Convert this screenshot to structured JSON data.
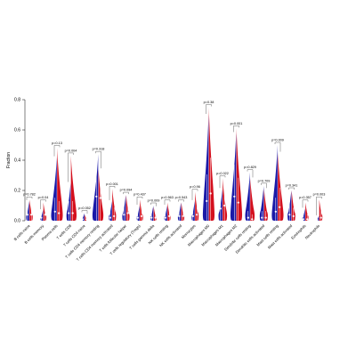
{
  "chart_data": {
    "type": "violin",
    "ylabel": "Fraction",
    "ylim": [
      0,
      0.8
    ],
    "yticks": [
      "0.0",
      "0.2",
      "0.4",
      "0.6",
      "0.8"
    ],
    "series_colors": {
      "group1": "#1a1aa8",
      "group2": "#d4101e"
    },
    "categories": [
      "B cells naive",
      "B cells memory",
      "Plasma cells",
      "T cells CD8",
      "T cells CD4 naive",
      "T cells CD4 memory resting",
      "T cells CD4 memory activated",
      "T cells follicular helper",
      "T cells regulatory (Tregs)",
      "T cells gamma delta",
      "NK cells resting",
      "NK cells activated",
      "Monocytes",
      "Macrophages M0",
      "Macrophages M1",
      "Macrophages M2",
      "Dendritic cells resting",
      "Dendritic cells activated",
      "Mast cells resting",
      "Mast cells activated",
      "Eosinophils",
      "Neutrophils"
    ],
    "pvalues": [
      "p=0.782",
      "p=0.04",
      "p=0.13",
      "p=0.004",
      "p=0.052",
      "p=0.318",
      "p=0.001",
      "p=0.094",
      "p=0.437",
      "p=0.009",
      "p=0.563",
      "p=0.543",
      "p=0.96",
      "p=0.38",
      "p=0.022",
      "p=0.001",
      "p=0.829",
      "p=0.709",
      "p=0.009",
      "p=0.341",
      "p=0.357",
      "p=0.003"
    ],
    "max_values": [
      [
        0.13,
        0.14
      ],
      [
        0.07,
        0.12
      ],
      [
        0.42,
        0.48
      ],
      [
        0.25,
        0.43
      ],
      [
        0.05,
        0.04
      ],
      [
        0.44,
        0.34
      ],
      [
        0.13,
        0.21
      ],
      [
        0.17,
        0.17
      ],
      [
        0.1,
        0.14
      ],
      [
        0.1,
        0.09
      ],
      [
        0.1,
        0.12
      ],
      [
        0.12,
        0.12
      ],
      [
        0.13,
        0.19
      ],
      [
        0.7,
        0.75
      ],
      [
        0.21,
        0.28
      ],
      [
        0.58,
        0.61
      ],
      [
        0.32,
        0.28
      ],
      [
        0.23,
        0.21
      ],
      [
        0.5,
        0.45
      ],
      [
        0.2,
        0.2
      ],
      [
        0.08,
        0.12
      ],
      [
        0.03,
        0.14
      ]
    ],
    "median_values": [
      [
        0.04,
        0.04
      ],
      [
        0.02,
        0.04
      ],
      [
        0.06,
        0.05
      ],
      [
        0.05,
        0.05
      ],
      [
        0.01,
        0.01
      ],
      [
        0.16,
        0.15
      ],
      [
        0.02,
        0.03
      ],
      [
        0.04,
        0.05
      ],
      [
        0.02,
        0.03
      ],
      [
        0.02,
        0.02
      ],
      [
        0.02,
        0.03
      ],
      [
        0.03,
        0.03
      ],
      [
        0.03,
        0.04
      ],
      [
        0.13,
        0.18
      ],
      [
        0.08,
        0.1
      ],
      [
        0.16,
        0.12
      ],
      [
        0.02,
        0.01
      ],
      [
        0.02,
        0.02
      ],
      [
        0.06,
        0.09
      ],
      [
        0.04,
        0.03
      ],
      [
        0.01,
        0.01
      ],
      [
        0.005,
        0.02
      ]
    ]
  }
}
